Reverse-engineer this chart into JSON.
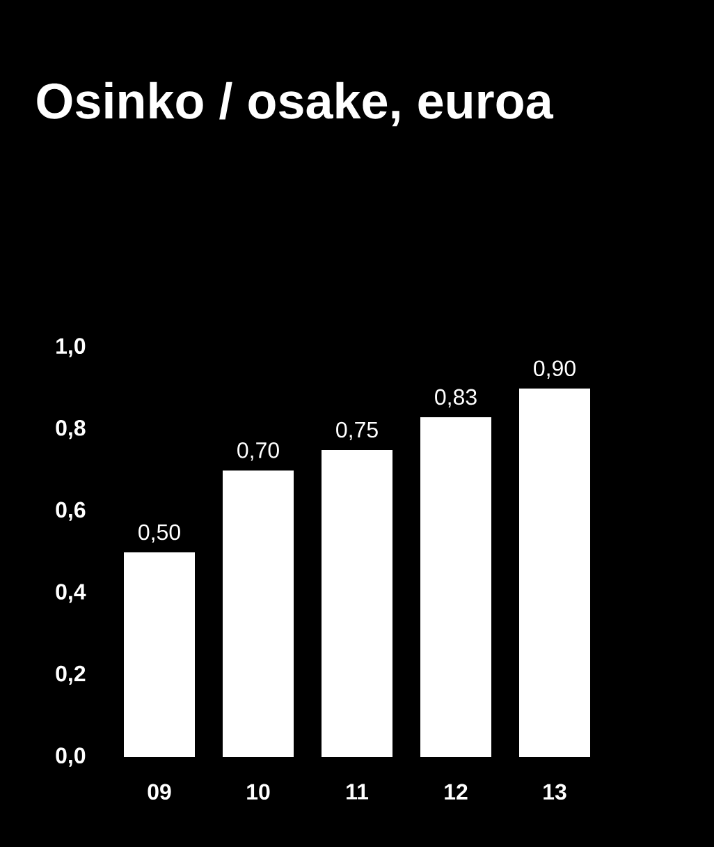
{
  "chart_data": {
    "type": "bar",
    "title": "Osinko / osake, euroa",
    "categories": [
      "09",
      "10",
      "11",
      "12",
      "13"
    ],
    "values": [
      0.5,
      0.7,
      0.75,
      0.83,
      0.9
    ],
    "value_labels": [
      "0,50",
      "0,70",
      "0,75",
      "0,83",
      "0,90"
    ],
    "color": "#ffffff",
    "ylim": [
      0,
      1.0
    ],
    "yticks": [
      {
        "value": 0,
        "label": "0,0"
      },
      {
        "value": 0.2,
        "label": "0,2"
      },
      {
        "value": 0.4,
        "label": "0,4"
      },
      {
        "value": 0.6,
        "label": "0,6"
      },
      {
        "value": 0.8,
        "label": "0,8"
      },
      {
        "value": 1.0,
        "label": "1,0"
      }
    ]
  }
}
